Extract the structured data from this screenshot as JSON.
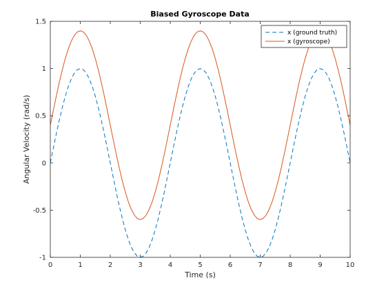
{
  "chart_data": {
    "type": "line",
    "title": "Biased Gyroscope Data",
    "xlabel": "Time (s)",
    "ylabel": "Angular Velocity (rad/s)",
    "xlim": [
      0,
      10
    ],
    "ylim": [
      -1,
      1.5
    ],
    "xticks": [
      0,
      1,
      2,
      3,
      4,
      5,
      6,
      7,
      8,
      9,
      10
    ],
    "yticks": [
      -1,
      -0.5,
      0,
      0.5,
      1,
      1.5
    ],
    "xtick_labels": [
      "0",
      "1",
      "2",
      "3",
      "4",
      "5",
      "6",
      "7",
      "8",
      "9",
      "10"
    ],
    "ytick_labels": [
      "-1",
      "-0.5",
      "0",
      "0.5",
      "1",
      "1.5"
    ],
    "grid": false,
    "legend_position": "top-right",
    "series": [
      {
        "name": "x (ground truth)",
        "style": "dashed",
        "color": "#0072BD",
        "x": [
          0,
          0.1,
          0.2,
          0.3,
          0.4,
          0.5,
          0.6,
          0.7,
          0.8,
          0.9,
          1,
          1.1,
          1.2,
          1.3,
          1.4,
          1.5,
          1.6,
          1.7,
          1.8,
          1.9,
          2,
          2.1,
          2.2,
          2.3,
          2.4,
          2.5,
          2.6,
          2.7,
          2.8,
          2.9,
          3,
          3.1,
          3.2,
          3.3,
          3.4,
          3.5,
          3.6,
          3.7,
          3.8,
          3.9,
          4,
          4.1,
          4.2,
          4.3,
          4.4,
          4.5,
          4.6,
          4.7,
          4.8,
          4.9,
          5,
          5.1,
          5.2,
          5.3,
          5.4,
          5.5,
          5.6,
          5.7,
          5.8,
          5.9,
          6,
          6.1,
          6.2,
          6.3,
          6.4,
          6.5,
          6.6,
          6.7,
          6.8,
          6.9,
          7,
          7.1,
          7.2,
          7.3,
          7.4,
          7.5,
          7.6,
          7.7,
          7.8,
          7.9,
          8,
          8.1,
          8.2,
          8.3,
          8.4,
          8.5,
          8.6,
          8.7,
          8.8,
          8.9,
          9,
          9.1,
          9.2,
          9.3,
          9.4,
          9.5,
          9.6,
          9.7,
          9.8,
          9.9,
          10
        ],
        "y": [
          0,
          0.156,
          0.309,
          0.454,
          0.588,
          0.707,
          0.809,
          0.891,
          0.951,
          0.988,
          1,
          0.988,
          0.951,
          0.891,
          0.809,
          0.707,
          0.588,
          0.454,
          0.309,
          0.156,
          0,
          -0.156,
          -0.309,
          -0.454,
          -0.588,
          -0.707,
          -0.809,
          -0.891,
          -0.951,
          -0.988,
          -1,
          -0.988,
          -0.951,
          -0.891,
          -0.809,
          -0.707,
          -0.588,
          -0.454,
          -0.309,
          -0.156,
          0,
          0.156,
          0.309,
          0.454,
          0.588,
          0.707,
          0.809,
          0.891,
          0.951,
          0.988,
          1,
          0.988,
          0.951,
          0.891,
          0.809,
          0.707,
          0.588,
          0.454,
          0.309,
          0.156,
          0,
          -0.156,
          -0.309,
          -0.454,
          -0.588,
          -0.707,
          -0.809,
          -0.891,
          -0.951,
          -0.988,
          -1,
          -0.988,
          -0.951,
          -0.891,
          -0.809,
          -0.707,
          -0.588,
          -0.454,
          -0.309,
          -0.156,
          0,
          0.156,
          0.309,
          0.454,
          0.588,
          0.707,
          0.809,
          0.891,
          0.951,
          0.988,
          1,
          0.988,
          0.951,
          0.891,
          0.809,
          0.707,
          0.588,
          0.454,
          0.309,
          0.156,
          0
        ]
      },
      {
        "name": "x (gyroscope)",
        "style": "solid",
        "color": "#D95319",
        "x": [
          0,
          0.1,
          0.2,
          0.3,
          0.4,
          0.5,
          0.6,
          0.7,
          0.8,
          0.9,
          1,
          1.1,
          1.2,
          1.3,
          1.4,
          1.5,
          1.6,
          1.7,
          1.8,
          1.9,
          2,
          2.1,
          2.2,
          2.3,
          2.4,
          2.5,
          2.6,
          2.7,
          2.8,
          2.9,
          3,
          3.1,
          3.2,
          3.3,
          3.4,
          3.5,
          3.6,
          3.7,
          3.8,
          3.9,
          4,
          4.1,
          4.2,
          4.3,
          4.4,
          4.5,
          4.6,
          4.7,
          4.8,
          4.9,
          5,
          5.1,
          5.2,
          5.3,
          5.4,
          5.5,
          5.6,
          5.7,
          5.8,
          5.9,
          6,
          6.1,
          6.2,
          6.3,
          6.4,
          6.5,
          6.6,
          6.7,
          6.8,
          6.9,
          7,
          7.1,
          7.2,
          7.3,
          7.4,
          7.5,
          7.6,
          7.7,
          7.8,
          7.9,
          8,
          8.1,
          8.2,
          8.3,
          8.4,
          8.5,
          8.6,
          8.7,
          8.8,
          8.9,
          9,
          9.1,
          9.2,
          9.3,
          9.4,
          9.5,
          9.6,
          9.7,
          9.8,
          9.9,
          10
        ],
        "y": [
          0.4,
          0.556,
          0.709,
          0.854,
          0.988,
          1.107,
          1.209,
          1.291,
          1.351,
          1.388,
          1.4,
          1.388,
          1.351,
          1.291,
          1.209,
          1.107,
          0.988,
          0.854,
          0.709,
          0.556,
          0.4,
          0.244,
          0.091,
          -0.054,
          -0.188,
          -0.307,
          -0.409,
          -0.491,
          -0.551,
          -0.588,
          -0.6,
          -0.588,
          -0.551,
          -0.491,
          -0.409,
          -0.307,
          -0.188,
          -0.054,
          0.091,
          0.244,
          0.4,
          0.556,
          0.709,
          0.854,
          0.988,
          1.107,
          1.209,
          1.291,
          1.351,
          1.388,
          1.4,
          1.388,
          1.351,
          1.291,
          1.209,
          1.107,
          0.988,
          0.854,
          0.709,
          0.556,
          0.4,
          0.244,
          0.091,
          -0.054,
          -0.188,
          -0.307,
          -0.409,
          -0.491,
          -0.551,
          -0.588,
          -0.6,
          -0.588,
          -0.551,
          -0.491,
          -0.409,
          -0.307,
          -0.188,
          -0.054,
          0.091,
          0.244,
          0.4,
          0.556,
          0.709,
          0.854,
          0.988,
          1.107,
          1.209,
          1.291,
          1.351,
          1.388,
          1.4,
          1.388,
          1.351,
          1.291,
          1.209,
          1.107,
          0.988,
          0.854,
          0.709,
          0.556,
          0.4
        ]
      }
    ]
  }
}
